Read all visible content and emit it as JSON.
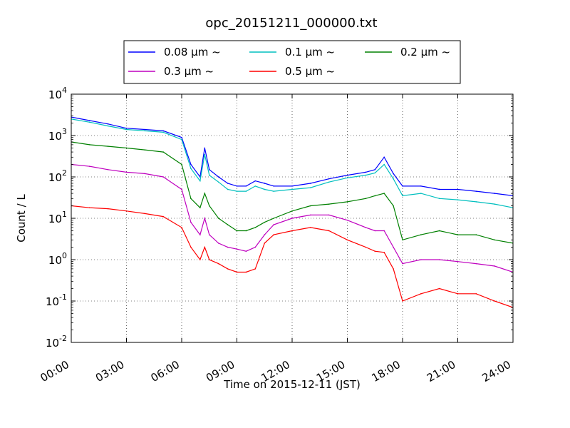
{
  "chart_data": {
    "type": "line",
    "title": "opc_20151211_000000.txt",
    "xlabel": "Time on 2015-12-11 (JST)",
    "ylabel": "Count / L",
    "x_axis": {
      "unit": "hours",
      "range": [
        0,
        24
      ],
      "tick_values": [
        0,
        3,
        6,
        9,
        12,
        15,
        18,
        21,
        24
      ],
      "tick_labels": [
        "00:00",
        "03:00",
        "06:00",
        "09:00",
        "12:00",
        "15:00",
        "18:00",
        "21:00",
        "24:00"
      ]
    },
    "y_axis": {
      "scale": "log",
      "range": [
        0.01,
        10000
      ],
      "tick_exponents": [
        -2,
        -1,
        0,
        1,
        2,
        3,
        4
      ],
      "tick_base": "10"
    },
    "grid": true,
    "legend_position": "top-center",
    "legend_columns": 3,
    "x": [
      0,
      1,
      2,
      3,
      4,
      5,
      6,
      6.5,
      7,
      7.25,
      7.5,
      8,
      8.5,
      9,
      9.5,
      10,
      10.5,
      11,
      12,
      13,
      14,
      15,
      16,
      16.5,
      17,
      17.5,
      18,
      19,
      20,
      21,
      22,
      23,
      24
    ],
    "series": [
      {
        "name": "0.08 μm ~",
        "color": "#0000ff",
        "values": [
          2800,
          2300,
          1900,
          1500,
          1400,
          1300,
          900,
          200,
          100,
          500,
          150,
          100,
          70,
          60,
          60,
          80,
          70,
          60,
          60,
          70,
          90,
          110,
          130,
          150,
          300,
          120,
          60,
          60,
          50,
          50,
          45,
          40,
          35
        ]
      },
      {
        "name": "0.1 μm ~",
        "color": "#00bfbf",
        "values": [
          2500,
          2100,
          1700,
          1400,
          1300,
          1200,
          800,
          160,
          80,
          350,
          110,
          75,
          50,
          45,
          45,
          60,
          50,
          45,
          50,
          55,
          75,
          95,
          110,
          125,
          200,
          90,
          35,
          40,
          30,
          28,
          25,
          22,
          18
        ]
      },
      {
        "name": "0.2 μm ~",
        "color": "#008000",
        "values": [
          700,
          600,
          550,
          500,
          450,
          400,
          200,
          30,
          18,
          40,
          20,
          10,
          7,
          5,
          5,
          6,
          8,
          10,
          15,
          20,
          22,
          25,
          30,
          35,
          40,
          20,
          3,
          4,
          5,
          4,
          4,
          3,
          2.5
        ]
      },
      {
        "name": "0.3 μm ~",
        "color": "#bf00bf",
        "values": [
          200,
          180,
          150,
          130,
          120,
          100,
          50,
          8,
          4,
          10,
          4,
          2.5,
          2,
          1.8,
          1.6,
          2,
          4,
          7,
          10,
          12,
          12,
          9,
          6,
          5,
          5,
          2,
          0.8,
          1,
          1,
          0.9,
          0.8,
          0.7,
          0.5
        ]
      },
      {
        "name": "0.5 μm ~",
        "color": "#ff0000",
        "values": [
          20,
          18,
          17,
          15,
          13,
          11,
          6,
          2,
          1,
          2,
          1,
          0.8,
          0.6,
          0.5,
          0.5,
          0.6,
          2.5,
          4,
          5,
          6,
          5,
          3,
          2,
          1.6,
          1.5,
          0.6,
          0.1,
          0.15,
          0.2,
          0.15,
          0.15,
          0.1,
          0.07
        ]
      }
    ]
  }
}
